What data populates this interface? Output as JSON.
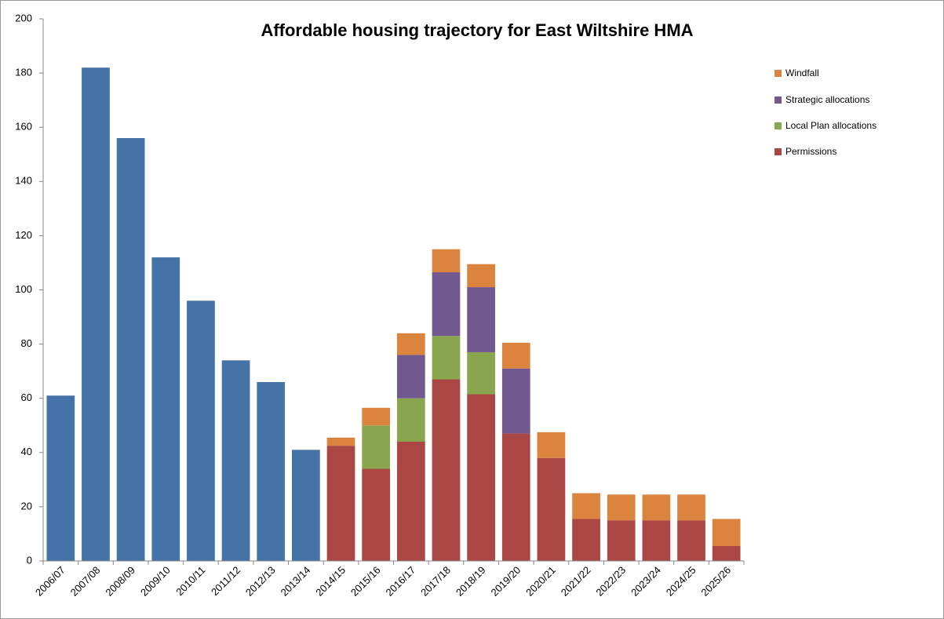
{
  "chart_data": {
    "type": "bar",
    "stacked": true,
    "title": "Affordable housing trajectory for East Wiltshire HMA",
    "categories": [
      "2006/07",
      "2007/08",
      "2008/09",
      "2009/10",
      "2010/11",
      "2011/12",
      "2012/13",
      "2013/14",
      "2014/15",
      "2015/16",
      "2016/17",
      "2017/18",
      "2018/19",
      "2019/20",
      "2020/21",
      "2021/22",
      "2022/23",
      "2023/24",
      "2024/25",
      "2025/26"
    ],
    "series": [
      {
        "color": "#4572a7",
        "values": [
          61,
          182,
          156,
          112,
          96,
          74,
          66,
          41,
          null,
          null,
          null,
          null,
          null,
          null,
          null,
          null,
          null,
          null,
          null,
          null
        ]
      },
      {
        "name": "Permissions",
        "color": "#aa4643",
        "values": [
          null,
          null,
          null,
          null,
          null,
          null,
          null,
          null,
          42.5,
          34,
          44,
          67,
          61.5,
          47,
          38,
          15.5,
          15,
          15,
          15,
          5.5
        ]
      },
      {
        "name": "Local Plan allocations",
        "color": "#89a54e",
        "values": [
          null,
          null,
          null,
          null,
          null,
          null,
          null,
          null,
          null,
          16,
          16,
          16,
          15.5,
          null,
          null,
          null,
          null,
          null,
          null,
          null
        ]
      },
      {
        "name": "Strategic allocations",
        "color": "#71588f",
        "values": [
          null,
          null,
          null,
          null,
          null,
          null,
          null,
          null,
          null,
          null,
          16,
          23.5,
          24,
          24,
          null,
          null,
          null,
          null,
          null,
          null
        ]
      },
      {
        "name": "Windfall",
        "color": "#db843d",
        "values": [
          null,
          null,
          null,
          null,
          null,
          null,
          null,
          null,
          3,
          6.5,
          8,
          8.5,
          8.5,
          9.5,
          9.5,
          9.5,
          9.5,
          9.5,
          9.5,
          10
        ]
      }
    ],
    "ylim": [
      0,
      200
    ],
    "yticks": [
      0,
      20,
      40,
      60,
      80,
      100,
      120,
      140,
      160,
      180,
      200
    ],
    "legend": "right"
  }
}
